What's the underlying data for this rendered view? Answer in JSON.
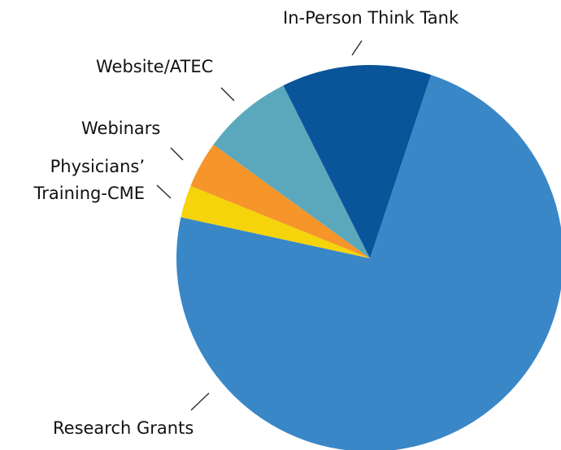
{
  "chart_data": {
    "type": "pie",
    "categories": [
      "Research Grants",
      "Physicians’\nTraining-CME",
      "Webinars",
      "Website/ATEC",
      "In-Person Think Tank"
    ],
    "values": [
      73.3,
      2.7,
      3.9,
      7.6,
      12.5
    ],
    "colors": [
      "#3a87c8",
      "#f5d40b",
      "#f5952a",
      "#5ba8bd",
      "#0a5499"
    ]
  }
}
